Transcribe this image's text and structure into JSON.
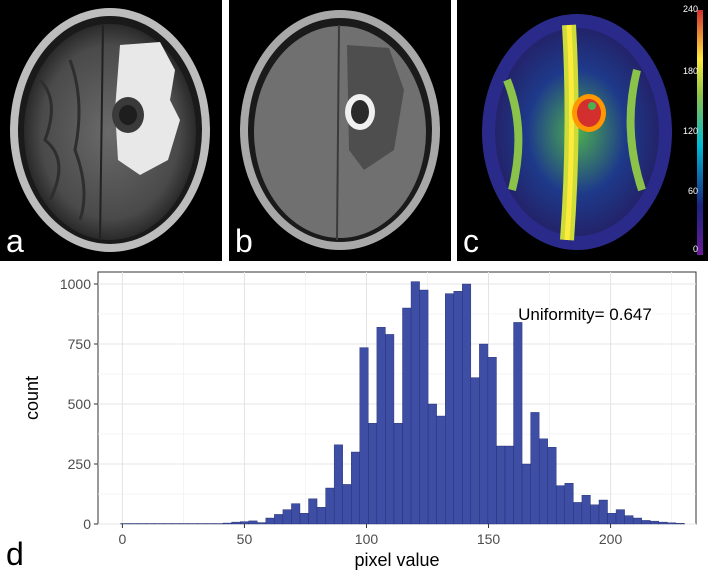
{
  "panels": {
    "a": {
      "label": "a"
    },
    "b": {
      "label": "b"
    },
    "c": {
      "label": "c",
      "colorbar_ticks": [
        "240",
        "180",
        "120",
        "60",
        "0"
      ]
    },
    "d": {
      "label": "d"
    }
  },
  "chart_data": {
    "type": "bar",
    "xlabel": "pixel value",
    "ylabel": "count",
    "annotation": "Uniformity= 0.647",
    "xlim": [
      -10,
      235
    ],
    "ylim": [
      0,
      1050
    ],
    "xticks": [
      0,
      50,
      100,
      150,
      200
    ],
    "yticks": [
      0,
      250,
      500,
      750,
      1000
    ],
    "grid": true,
    "bar_color": "#3f4ea5",
    "bin_width": 3.5,
    "x": [
      1,
      4.5,
      8,
      11.5,
      15,
      18.5,
      22,
      25.5,
      29,
      32.5,
      36,
      39.5,
      43,
      46.5,
      50,
      53.5,
      57,
      60.5,
      64,
      67.5,
      71,
      74.5,
      78,
      81.5,
      85,
      88.5,
      92,
      95.5,
      99,
      102.5,
      106,
      109.5,
      113,
      116.5,
      120,
      123.5,
      127,
      130.5,
      134,
      137.5,
      141,
      144.5,
      148,
      151.5,
      155,
      158.5,
      162,
      165.5,
      169,
      172.5,
      176,
      179.5,
      183,
      186.5,
      190,
      193.5,
      197,
      200.5,
      204,
      207.5,
      211,
      214.5,
      218,
      221.5,
      225,
      228.5
    ],
    "values": [
      0,
      0,
      0,
      0,
      0,
      0,
      0,
      0,
      0,
      0,
      0,
      2,
      4,
      8,
      10,
      13,
      6,
      25,
      40,
      60,
      85,
      45,
      105,
      70,
      150,
      330,
      165,
      300,
      735,
      420,
      820,
      790,
      420,
      900,
      1010,
      975,
      500,
      450,
      960,
      970,
      1000,
      610,
      750,
      695,
      325,
      325,
      840,
      250,
      465,
      355,
      320,
      160,
      170,
      90,
      120,
      80,
      100,
      45,
      60,
      35,
      25,
      15,
      12,
      8,
      5,
      3
    ]
  }
}
